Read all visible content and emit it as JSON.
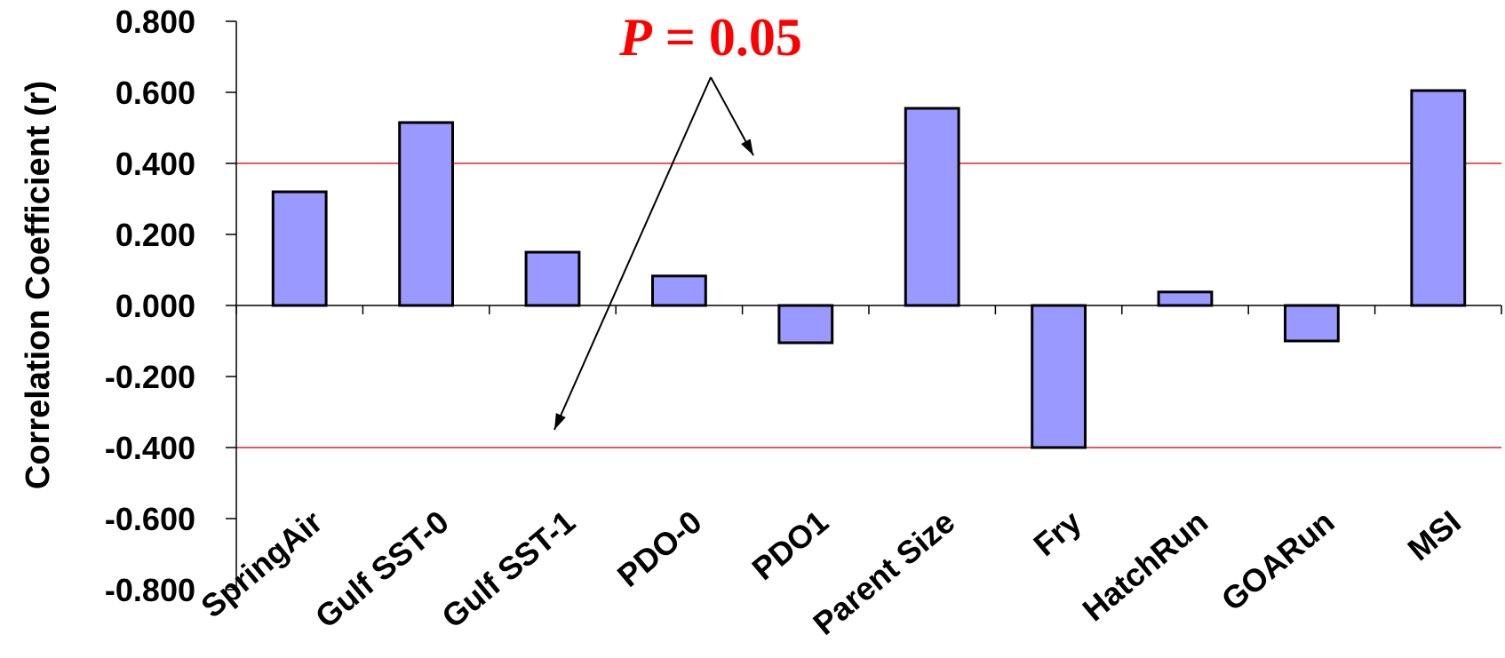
{
  "chart_data": {
    "type": "bar",
    "categories": [
      "SpringAir",
      "Gulf SST-0",
      "Gulf SST-1",
      "PDO-0",
      "PDO1",
      "Parent Size",
      "Fry",
      "HatchRun",
      "GOARun",
      "MSI"
    ],
    "values": [
      0.32,
      0.515,
      0.15,
      0.083,
      -0.105,
      0.555,
      -0.4,
      0.038,
      -0.1,
      0.605
    ],
    "title": "",
    "xlabel": "",
    "ylabel": "Correlation Coefficient (r)",
    "ylim": [
      -0.8,
      0.8
    ],
    "yticks": [
      0.8,
      0.6,
      0.4,
      0.2,
      0.0,
      -0.2,
      -0.4,
      -0.6,
      -0.8
    ],
    "ytick_labels": [
      "0.800",
      "0.600",
      "0.400",
      "0.200",
      "0.000",
      "-0.200",
      "-0.400",
      "-0.600",
      "-0.800"
    ],
    "reference_lines": [
      0.4,
      -0.4
    ],
    "reference_line_color": "#e0202a",
    "bar_fill": "#9999ff",
    "bar_stroke": "#000000",
    "grid": false,
    "legend": "none",
    "annotation": {
      "italic_part": "P",
      "rest": " = 0.05",
      "color": "#ff0000",
      "arrow_targets": [
        0.4,
        -0.4
      ]
    }
  }
}
